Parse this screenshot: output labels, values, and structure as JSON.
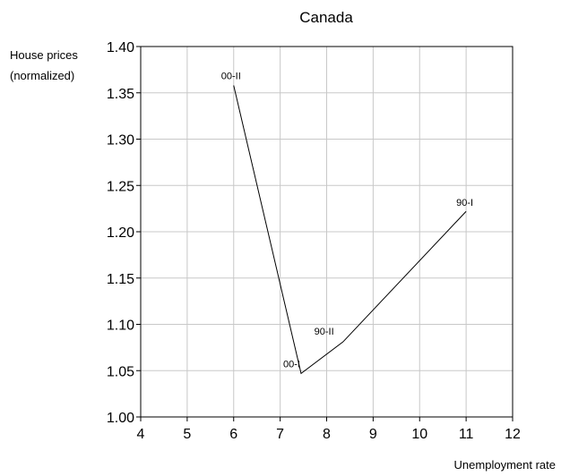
{
  "chart_data": {
    "type": "line",
    "title": "Canada",
    "xlabel": "Unemployment rate",
    "ylabel_lines": [
      "House prices",
      "(normalized)"
    ],
    "xlim": [
      4,
      12
    ],
    "ylim": [
      1.0,
      1.4
    ],
    "xticks": [
      "4",
      "5",
      "6",
      "7",
      "8",
      "9",
      "10",
      "11",
      "12"
    ],
    "yticks": [
      "1.00",
      "1.05",
      "1.10",
      "1.15",
      "1.20",
      "1.25",
      "1.30",
      "1.35",
      "1.40"
    ],
    "grid": true,
    "series": [
      {
        "points": [
          {
            "x": 11.0,
            "y": 1.222,
            "label": "90-I"
          },
          {
            "x": 8.35,
            "y": 1.081,
            "label": "90-II"
          },
          {
            "x": 7.45,
            "y": 1.047,
            "label": "00-I"
          },
          {
            "x": 6.0,
            "y": 1.358,
            "label": "00-II"
          }
        ]
      }
    ]
  }
}
